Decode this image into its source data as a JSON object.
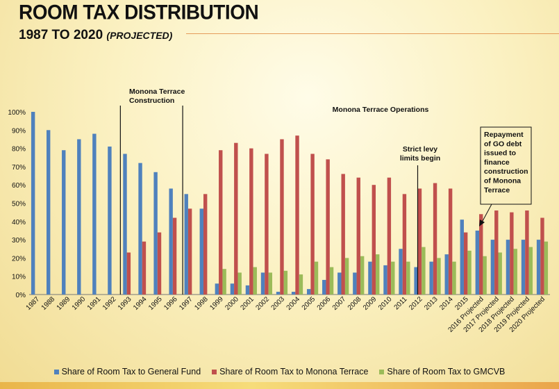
{
  "slide": {
    "title": "ROOM TAX DISTRIBUTION",
    "subtitle_main": "1987 TO 2020",
    "subtitle_note": "(PROJECTED)"
  },
  "colors": {
    "general_fund": "#4f81bd",
    "monona_terrace": "#c0504d",
    "gmcvb": "#9bbb59"
  },
  "chart_data": {
    "type": "bar",
    "title": "",
    "xlabel": "",
    "ylabel": "",
    "ylim": [
      0,
      1
    ],
    "y_ticks": [
      "0%",
      "10%",
      "20%",
      "30%",
      "40%",
      "50%",
      "60%",
      "70%",
      "80%",
      "90%",
      "100%"
    ],
    "grid": false,
    "legend_position": "bottom",
    "categories": [
      "1987",
      "1988",
      "1989",
      "1990",
      "1991",
      "1992",
      "1993",
      "1994",
      "1995",
      "1996",
      "1997",
      "1998",
      "1999",
      "2000",
      "2001",
      "2002",
      "2003",
      "2004",
      "2005",
      "2006",
      "2007",
      "2008",
      "2009",
      "2010",
      "2011",
      "2012",
      "2013",
      "2014",
      "2015",
      "2016 Projected",
      "2017 Projected",
      "2018 Projected",
      "2019 Projected",
      "2020 Projected"
    ],
    "series": [
      {
        "name": "Share of Room Tax to General Fund",
        "values": [
          1.0,
          0.9,
          0.79,
          0.85,
          0.88,
          0.81,
          0.77,
          0.72,
          0.67,
          0.58,
          0.55,
          0.47,
          0.06,
          0.06,
          0.05,
          0.12,
          0.015,
          0.015,
          0.03,
          0.08,
          0.12,
          0.12,
          0.18,
          0.16,
          0.25,
          0.15,
          0.18,
          0.22,
          0.41,
          0.35,
          0.3,
          0.3,
          0.3,
          0.3
        ]
      },
      {
        "name": "Share of Room Tax to Monona Terrace",
        "values": [
          0,
          0,
          0,
          0,
          0,
          0,
          0.23,
          0.29,
          0.34,
          0.42,
          0.47,
          0.55,
          0.79,
          0.83,
          0.8,
          0.77,
          0.85,
          0.87,
          0.77,
          0.74,
          0.66,
          0.64,
          0.6,
          0.64,
          0.55,
          0.58,
          0.61,
          0.58,
          0.34,
          0.44,
          0.46,
          0.45,
          0.46,
          0.42
        ]
      },
      {
        "name": "Share of Room Tax to GMCVB",
        "values": [
          0,
          0,
          0,
          0,
          0,
          0,
          0,
          0,
          0,
          0,
          0,
          0,
          0.14,
          0.12,
          0.15,
          0.12,
          0.13,
          0.11,
          0.18,
          0.15,
          0.2,
          0.21,
          0.22,
          0.18,
          0.18,
          0.26,
          0.2,
          0.18,
          0.24,
          0.21,
          0.23,
          0.25,
          0.26,
          0.29
        ]
      }
    ],
    "annotations": {
      "construction": "Monona Terrace\nConstruction",
      "operations": "Monona Terrace Operations",
      "levy": "Strict levy\nlimits begin",
      "repayment": "Repayment\nof GO debt\nissued to\nfinance\nconstruction\nof Monona\nTerrace"
    }
  }
}
